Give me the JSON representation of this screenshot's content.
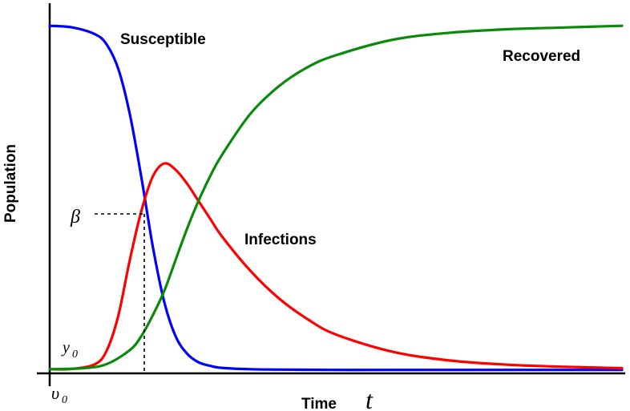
{
  "chart_data": {
    "type": "line",
    "xlabel": "Time",
    "xlabel_symbol": "t",
    "ylabel": "Population",
    "annotations": {
      "beta": "β",
      "y0": "y",
      "y0_sub": "0",
      "v0": "υ",
      "v0_sub": "0"
    },
    "xlim": [
      0,
      100
    ],
    "ylim": [
      0,
      1
    ],
    "grid": false,
    "legend": "inline",
    "series": [
      {
        "name": "Susceptible",
        "color": "#0000ff",
        "x": [
          0,
          4,
          8,
          10,
          12,
          14,
          16,
          18,
          20,
          22,
          24,
          26,
          28,
          30,
          35,
          40,
          50,
          60,
          80,
          100
        ],
        "y": [
          0.995,
          0.99,
          0.97,
          0.94,
          0.87,
          0.74,
          0.56,
          0.36,
          0.2,
          0.1,
          0.05,
          0.025,
          0.015,
          0.009,
          0.005,
          0.004,
          0.003,
          0.003,
          0.003,
          0.003
        ]
      },
      {
        "name": "Infections",
        "color": "#ff0000",
        "x": [
          0,
          4,
          8,
          10,
          12,
          14,
          16,
          18,
          20,
          22,
          24,
          26,
          28,
          30,
          35,
          40,
          45,
          50,
          60,
          70,
          80,
          90,
          100
        ],
        "y": [
          0.005,
          0.006,
          0.02,
          0.06,
          0.16,
          0.32,
          0.46,
          0.56,
          0.598,
          0.58,
          0.54,
          0.49,
          0.44,
          0.39,
          0.29,
          0.21,
          0.15,
          0.105,
          0.055,
          0.03,
          0.018,
          0.012,
          0.008
        ]
      },
      {
        "name": "Recovered",
        "color": "#0a8a0a",
        "x": [
          0,
          6,
          10,
          14,
          16,
          18,
          20,
          22,
          24,
          26,
          28,
          30,
          35,
          40,
          45,
          50,
          60,
          70,
          80,
          90,
          100
        ],
        "y": [
          0.005,
          0.008,
          0.02,
          0.06,
          0.1,
          0.16,
          0.23,
          0.32,
          0.41,
          0.49,
          0.56,
          0.62,
          0.74,
          0.82,
          0.875,
          0.91,
          0.955,
          0.975,
          0.985,
          0.99,
          0.995
        ]
      }
    ]
  }
}
